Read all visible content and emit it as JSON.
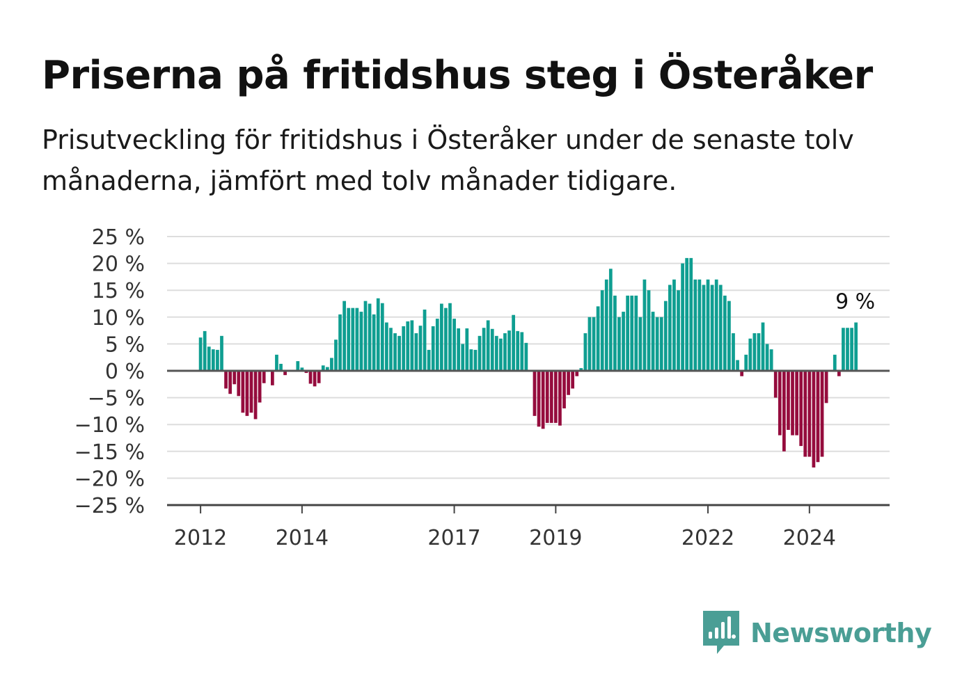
{
  "header": {
    "title": "Priserna på fritidshus steg i Österåker",
    "subtitle": "Prisutveckling för fritidshus i Österåker under de senaste tolv månaderna, jämfört med tolv månader tidigare."
  },
  "brand": {
    "name": "Newsworthy",
    "logo_icon": "newsworthy-logo-icon",
    "color": "#4a9e95"
  },
  "colors": {
    "positive": "#0f9e91",
    "negative": "#950c3d",
    "grid": "#dddddd",
    "axis": "#444444",
    "zero_line": "#555555"
  },
  "chart_data": {
    "type": "bar",
    "title": "Priserna på fritidshus steg i Österåker",
    "subtitle": "Prisutveckling för fritidshus i Österåker under de senaste tolv månaderna, jämfört med tolv månader tidigare.",
    "xlabel": "",
    "ylabel": "",
    "x_ticks": [
      {
        "label": "2012",
        "x": 2012.0
      },
      {
        "label": "2014",
        "x": 2014.0
      },
      {
        "label": "2017",
        "x": 2017.0
      },
      {
        "label": "2019",
        "x": 2019.0
      },
      {
        "label": "2022",
        "x": 2022.0
      },
      {
        "label": "2024",
        "x": 2024.0
      }
    ],
    "y_ticks": [
      {
        "label": "25 %",
        "value": 25
      },
      {
        "label": "20 %",
        "value": 20
      },
      {
        "label": "15 %",
        "value": 15
      },
      {
        "label": "10 %",
        "value": 10
      },
      {
        "label": "5 %",
        "value": 5
      },
      {
        "label": "0 %",
        "value": 0
      },
      {
        "label": "−5 %",
        "value": -5
      },
      {
        "label": "−10 %",
        "value": -10
      },
      {
        "label": "−15 %",
        "value": -15
      },
      {
        "label": "−20 %",
        "value": -20
      },
      {
        "label": "−25 %",
        "value": -25
      }
    ],
    "ylim": [
      -25,
      25
    ],
    "xlim": [
      2011.34,
      2025.58
    ],
    "grid": true,
    "legend": "none",
    "start": "2012-01",
    "frequency": "monthly",
    "unit": "%",
    "end_label": "9 %",
    "values": [
      6.2,
      7.4,
      4.5,
      4.0,
      3.9,
      6.5,
      -3.3,
      -4.3,
      -2.5,
      -4.7,
      -7.8,
      -8.4,
      -7.8,
      -9.0,
      -5.9,
      -2.3,
      0,
      -2.7,
      3.0,
      1.3,
      -0.8,
      0,
      0,
      1.8,
      0.6,
      -0.4,
      -2.4,
      -2.9,
      -2.3,
      1.0,
      0.7,
      2.4,
      5.8,
      10.5,
      13.0,
      11.7,
      11.7,
      11.7,
      11.0,
      13.0,
      12.5,
      10.5,
      13.5,
      12.6,
      9.0,
      8.0,
      7.0,
      6.5,
      8.3,
      9.2,
      9.4,
      7.0,
      8.4,
      11.4,
      3.9,
      8.3,
      9.7,
      12.5,
      11.7,
      12.6,
      9.7,
      7.9,
      5.0,
      7.9,
      4.0,
      3.9,
      6.5,
      8.0,
      9.4,
      7.8,
      6.5,
      6.0,
      7.0,
      7.5,
      10.4,
      7.4,
      7.2,
      5.2,
      0,
      -8.4,
      -10.4,
      -10.8,
      -9.7,
      -9.7,
      -9.7,
      -10.2,
      -7.0,
      -4.5,
      -3.3,
      -1.0,
      0.5,
      7.0,
      10.0,
      10.0,
      12.0,
      15.0,
      17.0,
      19.0,
      14.0,
      10.0,
      11.0,
      14.0,
      14.0,
      14.0,
      10.0,
      17.0,
      15.0,
      11.0,
      10.0,
      10.0,
      13.0,
      16.0,
      17.0,
      15.0,
      20.0,
      21.0,
      21.0,
      17.0,
      17.0,
      16.0,
      17.0,
      16.0,
      17.0,
      16.0,
      14.0,
      13.0,
      7.0,
      2.0,
      -1.0,
      3.0,
      6.0,
      7.0,
      7.0,
      9.0,
      5.0,
      4.0,
      -5.0,
      -12.0,
      -15.0,
      -11.0,
      -12.0,
      -12.0,
      -14.0,
      -16.0,
      -16.0,
      -18.0,
      -17.0,
      -16.0,
      -6.0,
      0,
      3.0,
      -1.0,
      8.0,
      8.0,
      8.0,
      9.0
    ]
  }
}
